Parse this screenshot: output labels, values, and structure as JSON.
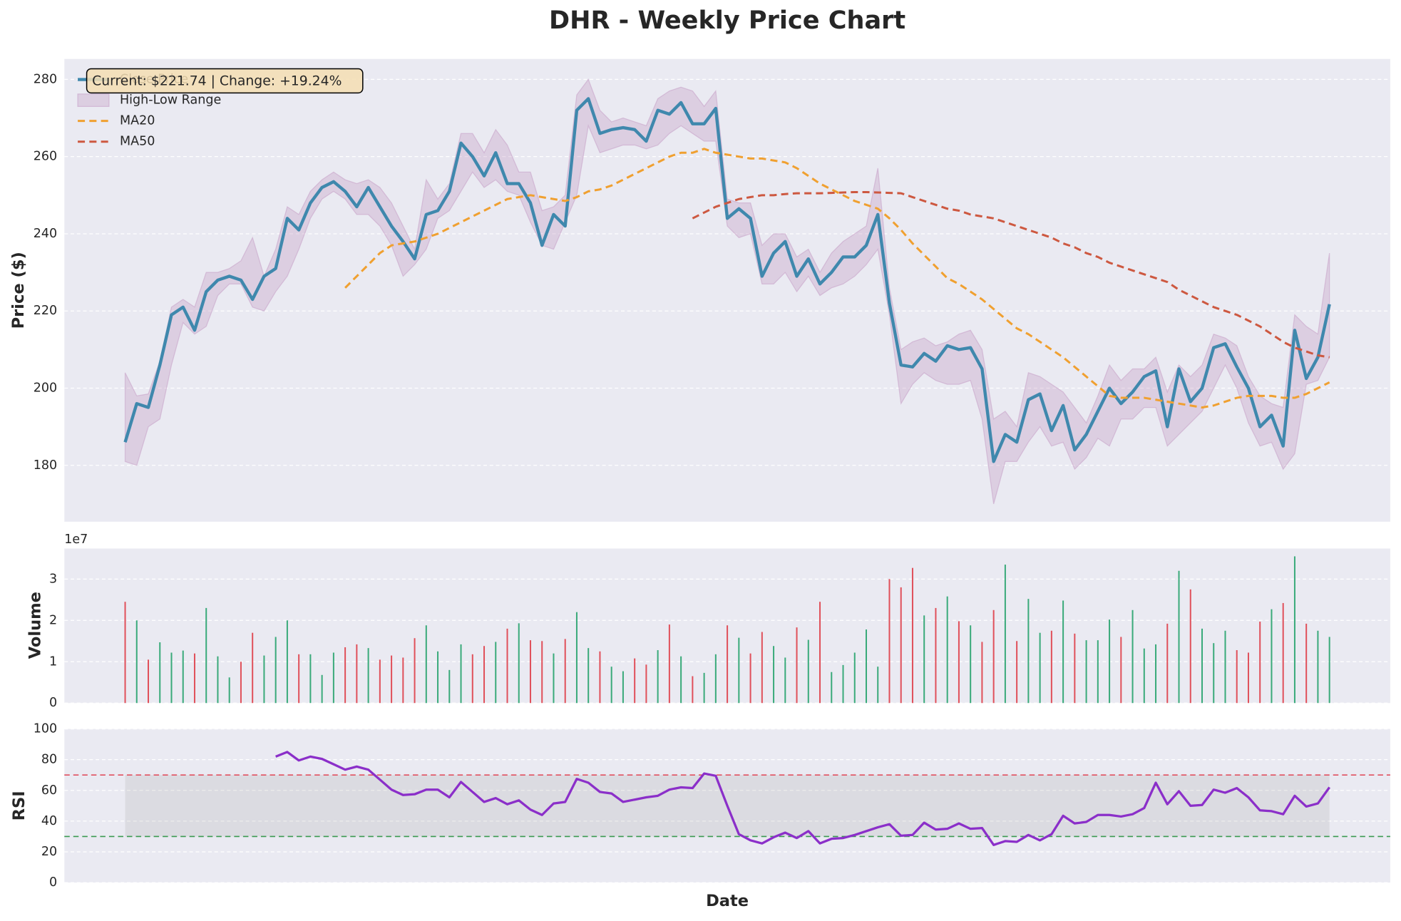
{
  "chart_data": [
    {
      "type": "line",
      "title": "DHR - Weekly Price Chart",
      "ylabel": "Price ($)",
      "ylim": [
        165.4,
        285.3
      ],
      "yticks": [
        180,
        200,
        220,
        240,
        260,
        280
      ],
      "grid": true,
      "legend": "upper left",
      "annotation": "Current: $221.74 | Change: +19.24%",
      "series": [
        {
          "name": "Close Price",
          "color": "#3f88ad",
          "values": [
            186,
            196,
            195,
            206,
            219,
            221,
            215,
            225,
            228,
            229,
            228,
            223,
            229,
            231,
            244,
            241,
            248,
            252,
            253.5,
            251,
            247,
            252,
            247,
            242,
            238,
            233.5,
            245,
            246,
            251,
            263.5,
            260,
            255,
            261,
            253,
            253,
            248,
            237,
            245,
            242,
            272,
            275,
            266,
            267,
            267.5,
            267,
            264,
            272,
            271,
            274,
            268.5,
            268.5,
            272.5,
            244,
            246.5,
            244,
            229,
            235,
            238,
            229,
            233.5,
            227,
            230,
            234,
            234,
            237,
            245,
            222,
            206,
            205.5,
            209,
            207,
            211,
            210,
            210.5,
            205,
            181,
            188,
            186,
            197,
            198.5,
            189,
            195.5,
            184,
            188,
            194,
            200,
            196,
            199,
            203,
            204.5,
            190,
            205,
            196.5,
            200,
            210.5,
            211.5,
            205.5,
            200,
            190,
            193,
            185,
            215,
            202.5,
            208,
            221.74
          ]
        },
        {
          "name": "High-Low Range",
          "color": "#c49ac4",
          "type": "band",
          "high": [
            204,
            198,
            198.5,
            207,
            221,
            223,
            221,
            230,
            230,
            231,
            233,
            239,
            229,
            236,
            247,
            245,
            251,
            254,
            256,
            254,
            253,
            254,
            252,
            248,
            242,
            236,
            254,
            249,
            253,
            266,
            266,
            261,
            267,
            263,
            256,
            256,
            246,
            247,
            250,
            276,
            280,
            272,
            269,
            270,
            269,
            268,
            275,
            277,
            278,
            277,
            273,
            277,
            249,
            248,
            248,
            237,
            240,
            240,
            234,
            236,
            230,
            235,
            238,
            240,
            242,
            257,
            226,
            210,
            212,
            213,
            211,
            212,
            214,
            215,
            210,
            192,
            194,
            190,
            204,
            203,
            201,
            199,
            195,
            191,
            198,
            206,
            202,
            205,
            205,
            208,
            199,
            206,
            203,
            206,
            214,
            213,
            211,
            203,
            198,
            196,
            195,
            219,
            216,
            214,
            235
          ],
          "low": [
            181,
            180,
            190,
            192,
            206,
            217,
            214,
            216,
            224,
            227,
            227,
            221,
            220,
            225,
            229,
            236,
            244,
            249,
            251,
            249,
            245,
            245,
            242,
            237,
            229,
            232,
            236,
            244,
            246,
            251,
            256,
            252,
            254,
            251,
            250,
            243,
            237,
            236,
            243,
            250,
            268,
            261,
            262,
            263,
            263,
            262,
            263,
            266,
            268,
            266,
            264,
            264,
            242,
            239,
            240,
            227,
            227,
            230,
            225,
            229,
            224,
            226,
            227,
            229,
            232,
            236,
            219,
            196,
            201,
            204,
            202,
            201,
            201,
            202,
            192,
            170,
            181,
            181,
            186,
            190,
            185,
            186,
            179,
            182,
            187,
            185,
            192,
            192,
            195,
            195,
            185,
            188,
            191,
            194,
            200,
            206,
            200,
            191,
            185,
            186,
            179,
            183,
            201,
            202,
            208
          ]
        },
        {
          "name": "MA20",
          "color": "#f0a030",
          "dashed": true,
          "values": [
            null,
            null,
            null,
            null,
            null,
            null,
            null,
            null,
            null,
            null,
            null,
            null,
            null,
            null,
            null,
            null,
            null,
            null,
            null,
            226,
            229,
            232,
            235,
            237,
            237.5,
            238,
            239,
            240,
            241.5,
            243,
            244.5,
            246,
            247.5,
            249,
            249.5,
            250,
            249.5,
            249,
            248.5,
            249.5,
            251,
            251.5,
            252.5,
            254,
            255.5,
            257,
            258.5,
            260,
            261,
            261,
            262,
            261,
            260.5,
            260,
            259.5,
            259.5,
            259,
            258.5,
            257,
            255,
            253,
            251.5,
            250,
            248.5,
            247.5,
            246.5,
            244,
            241,
            237.5,
            234.5,
            231.5,
            228.5,
            227,
            225,
            223,
            220.5,
            218,
            215.5,
            214,
            212,
            210,
            208,
            205.5,
            203,
            200.5,
            198,
            197.5,
            197.5,
            197.5,
            197,
            196.5,
            196,
            195.5,
            195,
            195.5,
            196.5,
            197.5,
            198,
            198,
            198,
            197.5,
            197.5,
            198.5,
            200,
            201.5
          ]
        },
        {
          "name": "MA50",
          "color": "#cd5840",
          "dashed": true,
          "values": [
            null,
            null,
            null,
            null,
            null,
            null,
            null,
            null,
            null,
            null,
            null,
            null,
            null,
            null,
            null,
            null,
            null,
            null,
            null,
            null,
            null,
            null,
            null,
            null,
            null,
            null,
            null,
            null,
            null,
            null,
            null,
            null,
            null,
            null,
            null,
            null,
            null,
            null,
            null,
            null,
            null,
            null,
            null,
            null,
            null,
            null,
            null,
            null,
            null,
            244,
            245.5,
            247,
            248,
            249,
            249.5,
            250,
            250,
            250.3,
            250.5,
            250.5,
            250.5,
            250.6,
            250.7,
            250.8,
            250.8,
            250.7,
            250.6,
            250.5,
            249.5,
            248.5,
            247.5,
            246.5,
            246,
            245,
            244.5,
            244,
            243,
            242,
            241,
            240,
            239,
            237.5,
            236.5,
            235,
            234,
            232.5,
            231.5,
            230.5,
            229.5,
            228.5,
            227.5,
            225.5,
            224,
            222.5,
            221,
            220,
            219,
            217.5,
            216,
            214,
            212,
            210.5,
            209.5,
            208.5,
            208
          ]
        }
      ]
    },
    {
      "type": "bar",
      "ylabel": "Volume",
      "offset_label": "1e7",
      "ylim": [
        0,
        3.74
      ],
      "yticks": [
        0,
        1,
        2,
        3
      ],
      "grid": true,
      "up_color": "#3aaa7a",
      "down_color": "#e0505a",
      "values": [
        2.45,
        2.0,
        1.05,
        1.47,
        1.22,
        1.27,
        1.2,
        2.3,
        1.13,
        0.62,
        1.0,
        1.7,
        1.15,
        1.6,
        2.0,
        1.18,
        1.18,
        0.68,
        1.22,
        1.35,
        1.42,
        1.33,
        1.05,
        1.15,
        1.1,
        1.57,
        1.88,
        1.25,
        0.8,
        1.42,
        1.18,
        1.38,
        1.48,
        1.8,
        1.93,
        1.52,
        1.5,
        1.2,
        1.55,
        2.2,
        1.33,
        1.25,
        0.88,
        0.77,
        1.08,
        0.93,
        1.28,
        1.9,
        1.13,
        0.65,
        0.73,
        1.18,
        1.88,
        1.58,
        1.2,
        1.72,
        1.38,
        1.1,
        1.83,
        1.53,
        2.45,
        0.75,
        0.92,
        1.22,
        1.78,
        0.88,
        3.0,
        2.8,
        3.27,
        2.12,
        2.3,
        2.58,
        1.98,
        1.88,
        1.48,
        2.25,
        3.35,
        1.5,
        2.52,
        1.7,
        1.75,
        2.48,
        1.68,
        1.52,
        1.52,
        2.02,
        1.6,
        2.25,
        1.32,
        1.42,
        1.92,
        3.2,
        2.75,
        1.8,
        1.45,
        1.75,
        1.28,
        1.22,
        1.97,
        2.27,
        2.42,
        3.55,
        1.92,
        1.75,
        1.6
      ]
    },
    {
      "type": "line",
      "ylabel": "RSI",
      "xlabel": "Date",
      "ylim": [
        0,
        100
      ],
      "yticks": [
        0,
        20,
        40,
        60,
        80,
        100
      ],
      "grid": true,
      "overbought": 70,
      "oversold": 30,
      "overbought_color": "#e05060",
      "oversold_color": "#3a9a50",
      "series": [
        {
          "color": "#8b2fc9",
          "values": [
            null,
            null,
            null,
            null,
            null,
            null,
            null,
            null,
            null,
            null,
            null,
            null,
            null,
            82,
            85,
            79.5,
            82,
            80.5,
            77,
            73.5,
            75.5,
            73.5,
            67,
            60.5,
            57,
            57.5,
            60.5,
            60.5,
            55.5,
            65.5,
            59,
            52.5,
            55,
            51,
            53.5,
            47.5,
            44,
            51.5,
            52.5,
            67.5,
            65,
            59,
            58,
            52.5,
            54,
            55.5,
            56.5,
            60.5,
            62,
            61.5,
            71,
            69.5,
            50,
            31.5,
            27.5,
            25.5,
            29.5,
            32.5,
            29,
            33.5,
            25.5,
            28.5,
            29,
            31,
            33.5,
            36,
            38,
            30.5,
            31,
            39,
            34.5,
            35,
            38.5,
            35,
            35.5,
            24.5,
            27,
            26.5,
            31,
            27.5,
            31.5,
            43.5,
            38.5,
            39.5,
            44,
            44,
            43,
            44.5,
            48.5,
            65,
            51,
            59.5,
            50,
            50.5,
            60.5,
            58.5,
            61.5,
            55.5,
            47,
            46.5,
            44.5,
            56.5,
            49.5,
            51.5,
            62
          ]
        }
      ]
    }
  ]
}
